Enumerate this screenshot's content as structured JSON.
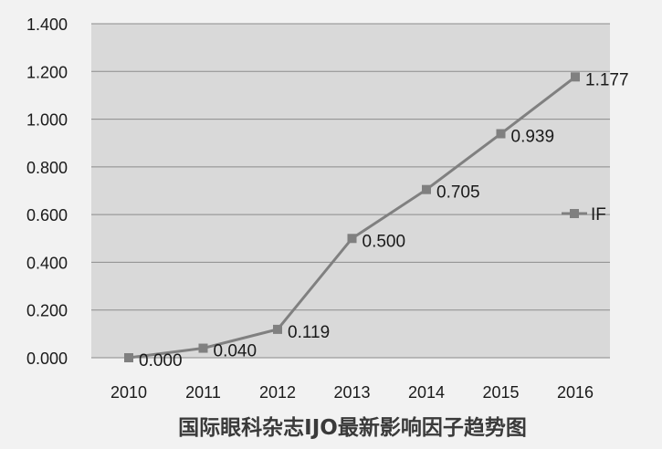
{
  "chart_data": {
    "type": "line",
    "title": "国际眼科杂志IJO最新影响因子趋势图",
    "categories": [
      "2010",
      "2011",
      "2012",
      "2013",
      "2014",
      "2015",
      "2016"
    ],
    "series": [
      {
        "name": "IF",
        "values": [
          0.0,
          0.04,
          0.119,
          0.5,
          0.705,
          0.939,
          1.177
        ],
        "data_labels": [
          "0.000",
          "0.040",
          "0.119",
          "0.500",
          "0.705",
          "0.939",
          "1.177"
        ],
        "color": "#808080"
      }
    ],
    "ylim": [
      0,
      1.4
    ],
    "yticks": [
      "0.000",
      "0.200",
      "0.400",
      "0.600",
      "0.800",
      "1.000",
      "1.200",
      "1.400"
    ],
    "grid": true,
    "legend": "right",
    "plot_background": "#d9d9d9",
    "frame_background": "#f2f2f2"
  }
}
